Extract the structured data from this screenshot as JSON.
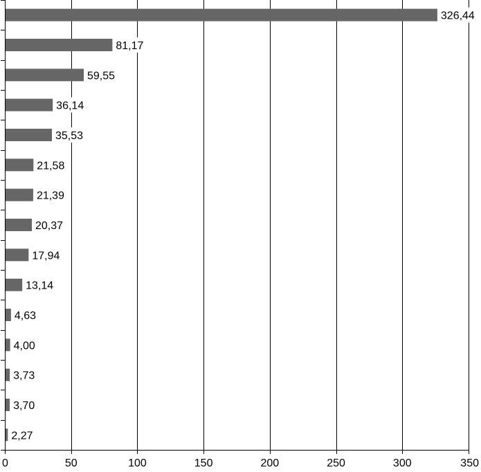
{
  "chart_data": {
    "type": "bar",
    "orientation": "horizontal",
    "categories": [
      "",
      "",
      "",
      "",
      "",
      "",
      "",
      "",
      "",
      "",
      "",
      "",
      "",
      "",
      ""
    ],
    "values": [
      326.44,
      81.17,
      59.55,
      36.14,
      35.53,
      21.58,
      21.39,
      20.37,
      17.94,
      13.14,
      4.63,
      4.0,
      3.73,
      3.7,
      2.27
    ],
    "data_labels": [
      "326,44",
      "81,17",
      "59,55",
      "36,14",
      "35,53",
      "21,58",
      "21,39",
      "20,37",
      "17,94",
      "13,14",
      "4,63",
      "4,00",
      "3,73",
      "3,70",
      "2,27"
    ],
    "title": "",
    "xlabel": "",
    "ylabel": "",
    "xlim": [
      0,
      350
    ],
    "x_ticks": [
      0,
      50,
      100,
      150,
      200,
      250,
      300,
      350
    ],
    "x_tick_labels": [
      "0",
      "50",
      "100",
      "150",
      "200",
      "250",
      "300",
      "350"
    ],
    "grid": "vertical",
    "legend": "none",
    "colors": {
      "bar": "#666666",
      "grid": "#000000",
      "axis": "#000000",
      "text": "#000000"
    }
  }
}
